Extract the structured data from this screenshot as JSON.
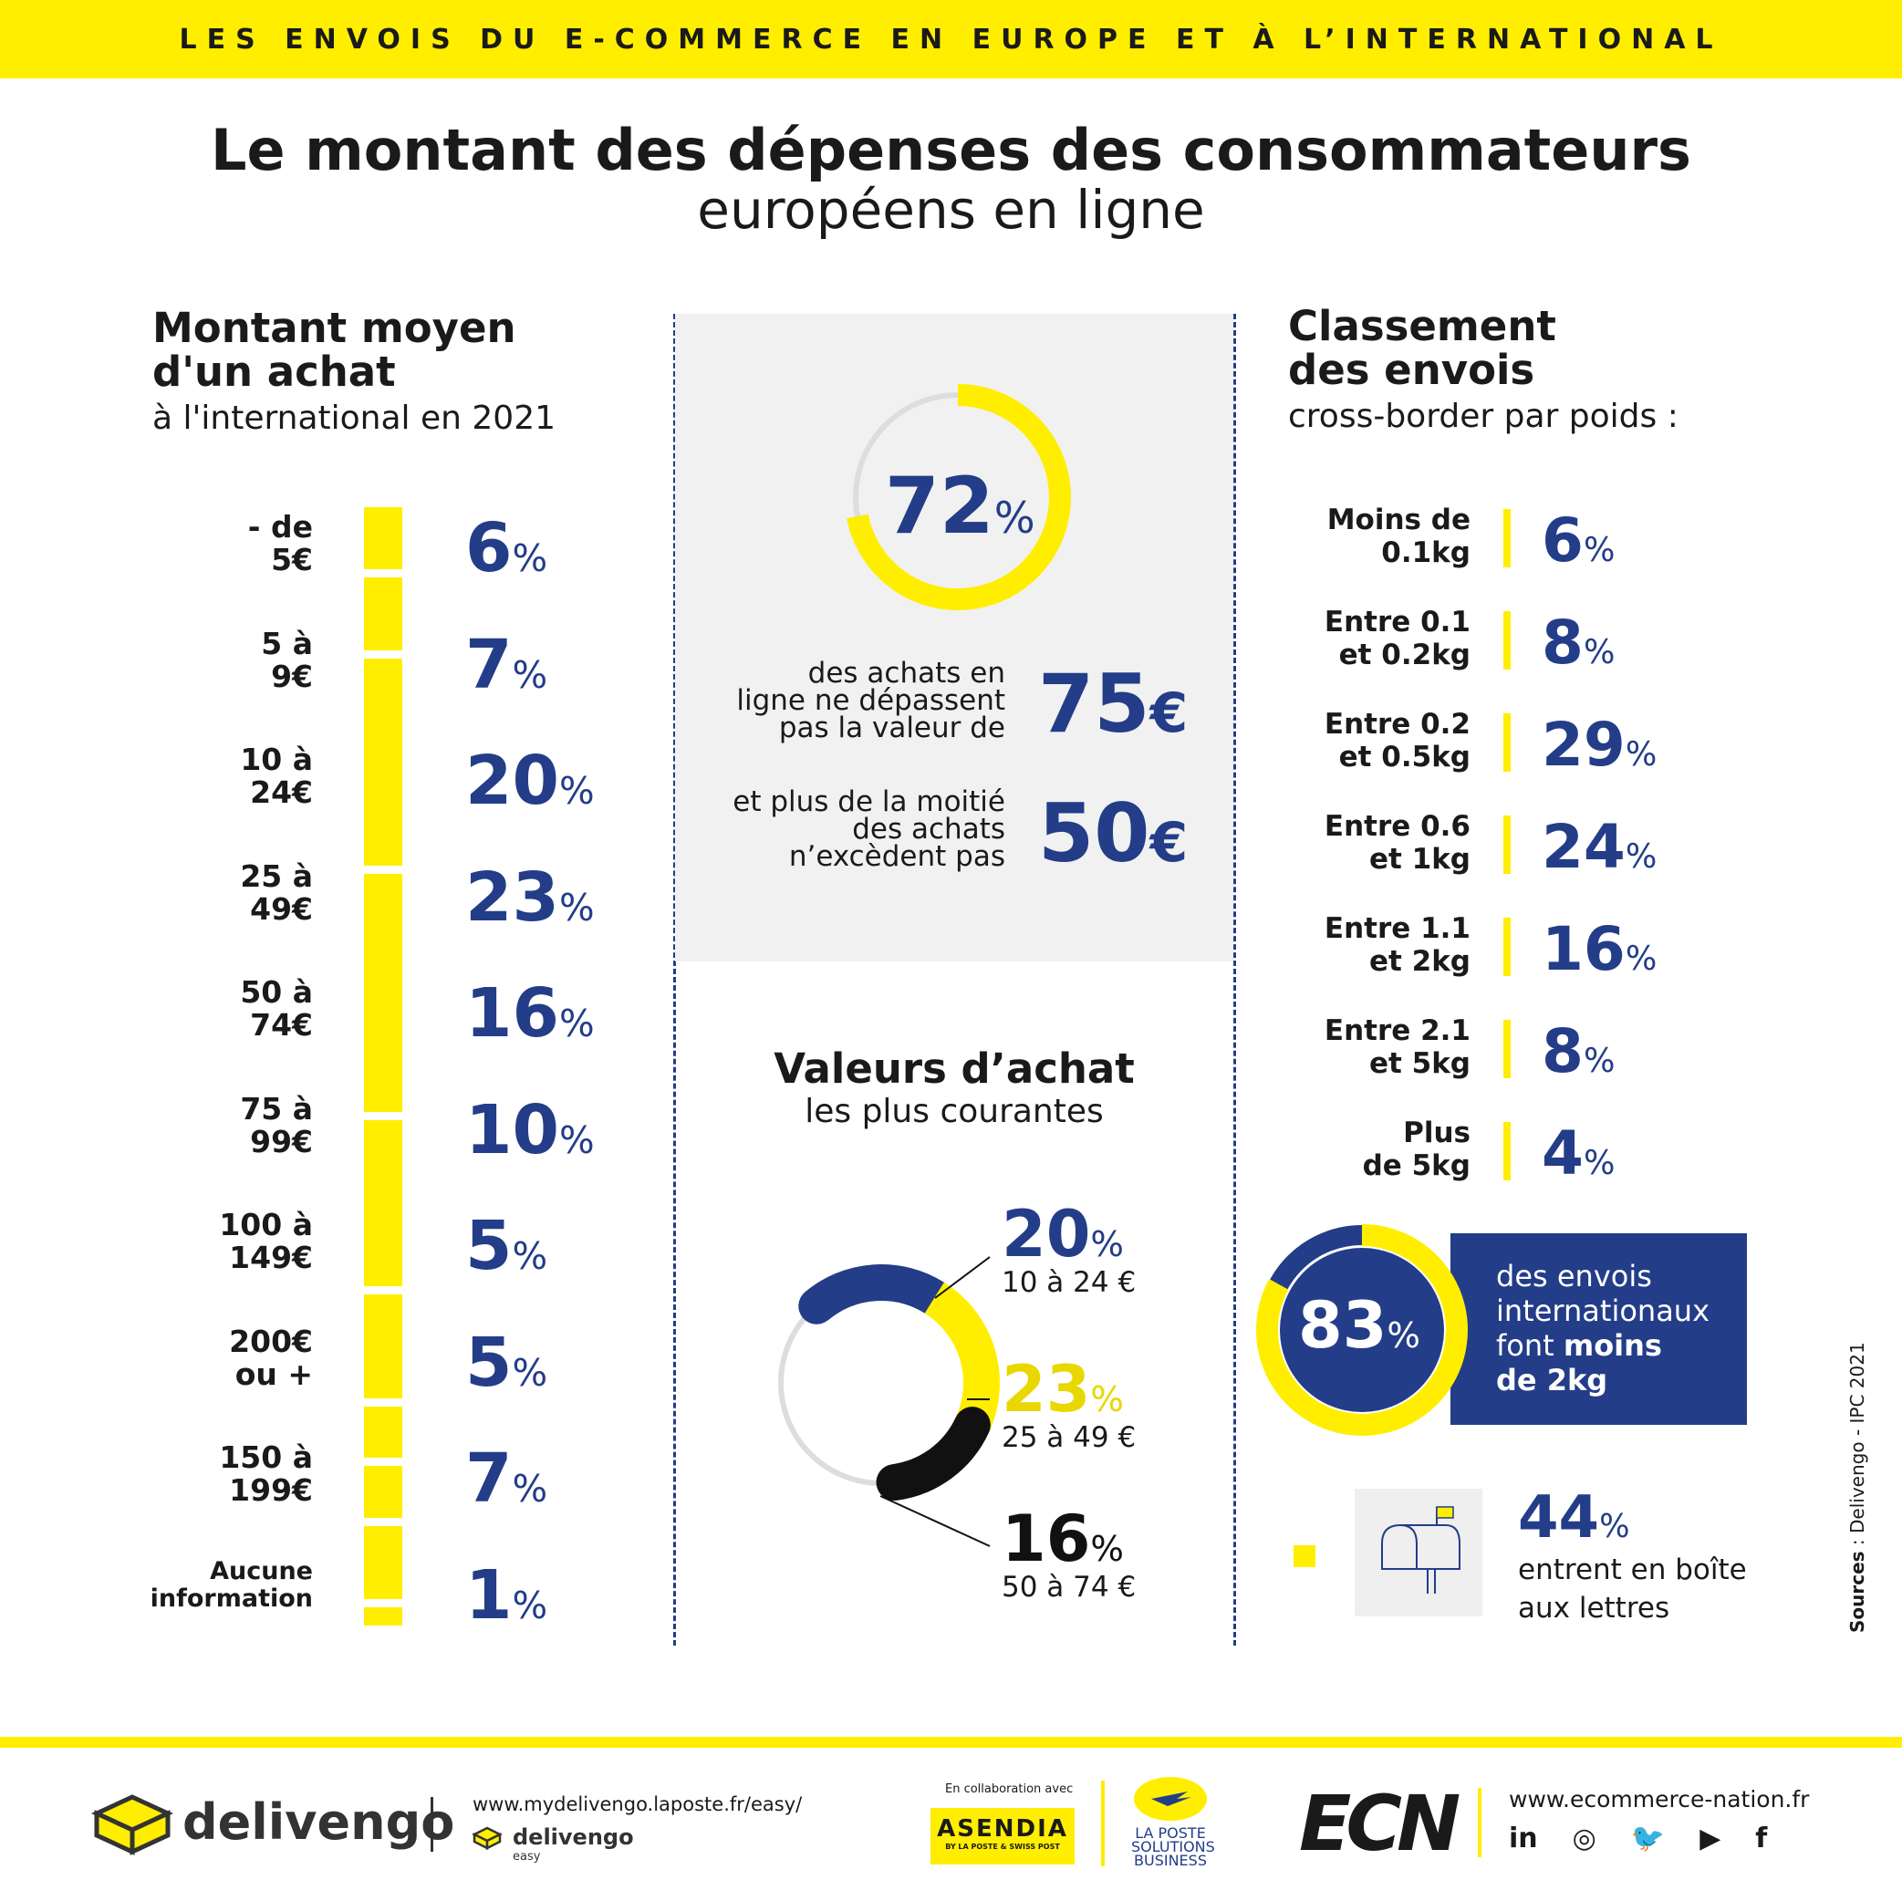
{
  "banner": "LES ENVOIS DU E-COMMERCE EN EUROPE ET À L’INTERNATIONAL",
  "title": {
    "line1": "Le montant des dépenses des consommateurs",
    "line2": "européens en ligne"
  },
  "left": {
    "title_line1": "Montant moyen",
    "title_line2": "d'un achat",
    "subtitle": "à l'international en 2021",
    "rows": [
      {
        "l1": "- de",
        "l2": "5€",
        "pct": "6",
        "value": 6
      },
      {
        "l1": "5 à",
        "l2": "9€",
        "pct": "7",
        "value": 7
      },
      {
        "l1": "10 à",
        "l2": "24€",
        "pct": "20",
        "value": 20
      },
      {
        "l1": "25 à",
        "l2": "49€",
        "pct": "23",
        "value": 23
      },
      {
        "l1": "50 à",
        "l2": "74€",
        "pct": "16",
        "value": 16
      },
      {
        "l1": "75 à",
        "l2": "99€",
        "pct": "10",
        "value": 10
      },
      {
        "l1": "100 à",
        "l2": "149€",
        "pct": "5",
        "value": 5
      },
      {
        "l1": "200€",
        "l2": "ou +",
        "pct": "5",
        "value": 5
      },
      {
        "l1": "150 à",
        "l2": "199€",
        "pct": "7",
        "value": 7
      },
      {
        "l1": "Aucune",
        "l2": "information",
        "pct": "1",
        "value": 1
      }
    ]
  },
  "middle": {
    "ring_value": "72",
    "ring_fraction": 0.72,
    "line1": "des achats en",
    "line2": "ligne ne dépassent",
    "line3": "pas la valeur de",
    "value1": "75",
    "line4": "et plus de la moitié",
    "line5": "des achats",
    "line6": "n’excèdent pas",
    "value2": "50",
    "currency": "€",
    "percent_sign": "%",
    "valeurs_title": "Valeurs d’achat",
    "valeurs_subtitle": "les plus courantes",
    "donut": [
      {
        "pct": "20",
        "range": "10 à 24 €",
        "color": "#233d88",
        "value": 20
      },
      {
        "pct": "23",
        "range": "25 à 49 €",
        "color": "#ffee00",
        "value": 23
      },
      {
        "pct": "16",
        "range": "50 à 74 €",
        "color": "#111111",
        "value": 16
      }
    ]
  },
  "right": {
    "title_line1": "Classement",
    "title_line2": "des envois",
    "subtitle": "cross-border par poids :",
    "rows": [
      {
        "l1": "Moins de",
        "l2": "0.1kg",
        "pct": "6"
      },
      {
        "l1": "Entre 0.1",
        "l2": "et 0.2kg",
        "pct": "8"
      },
      {
        "l1": "Entre 0.2",
        "l2": "et 0.5kg",
        "pct": "29"
      },
      {
        "l1": "Entre 0.6",
        "l2": "et 1kg",
        "pct": "24"
      },
      {
        "l1": "Entre 1.1",
        "l2": "et 2kg",
        "pct": "16"
      },
      {
        "l1": "Entre 2.1",
        "l2": "et 5kg",
        "pct": "8"
      },
      {
        "l1": "Plus",
        "l2": "de 5kg",
        "pct": "4"
      }
    ],
    "ring_value": "83",
    "ring_fraction": 0.83,
    "box_l1": "des envois",
    "box_l2": "internationaux",
    "box_l3a": "font ",
    "box_l3b": "moins",
    "box_l4": "de 2kg",
    "mail_pct": "44",
    "mail_l1": "entrent en boîte",
    "mail_l2": "aux lettres"
  },
  "source": {
    "label": "Sources",
    "text": " : Delivengo - IPC 2021"
  },
  "footer": {
    "brand": "delivengo",
    "url1": "www.mydelivengo.laposte.fr/easy/",
    "brand2": "delivengo",
    "brand2_sub": "easy",
    "collab": "En collaboration avec",
    "asendia": "ASENDIA",
    "asendia_sub": "BY LA POSTE & SWISS POST",
    "laposte1": "LA POSTE",
    "laposte2": "SOLUTIONS",
    "laposte3": "BUSINESS",
    "ecn": "ECN",
    "url2": "www.ecommerce-nation.fr",
    "social": [
      "in",
      "◎",
      "🐦",
      "▶",
      "f"
    ]
  },
  "colors": {
    "yellow": "#ffee00",
    "blue": "#233d88",
    "gray": "#f1f1f1"
  }
}
